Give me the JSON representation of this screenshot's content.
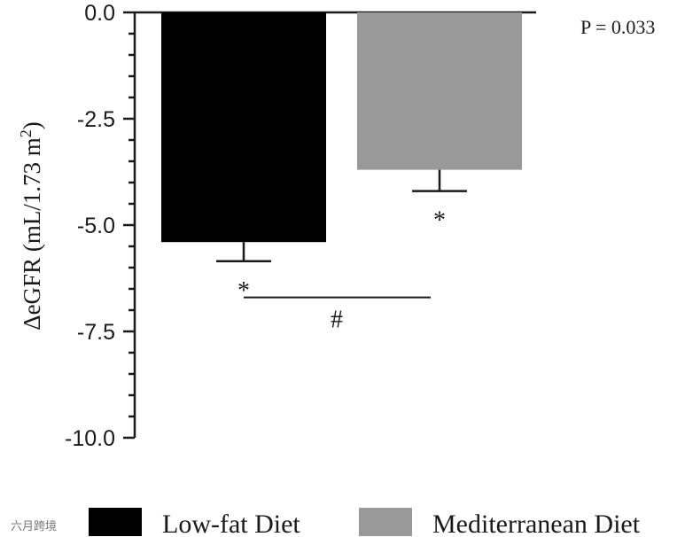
{
  "chart_data": {
    "type": "bar",
    "categories": [
      "Low-fat Diet",
      "Mediterranean Diet"
    ],
    "values": [
      -5.4,
      -3.7
    ],
    "error": [
      0.45,
      0.5
    ],
    "colors": [
      "#000000",
      "#999999"
    ],
    "ylabel_main": "ΔeGFR (mL/1.73 m",
    "ylabel_sup": "2",
    "ylabel_close": ")",
    "ylim": [
      -10.0,
      0.0
    ],
    "yticks": [
      0.0,
      -2.5,
      -5.0,
      -7.5,
      -10.0
    ],
    "ytick_labels": [
      "0.0",
      "-2.5",
      "-5.0",
      "-7.5",
      "-10.0"
    ],
    "within_group_markers": [
      "*",
      "*"
    ],
    "between_group_marker": "#",
    "p_value_text": "P  = 0.033",
    "legend": [
      "Low-fat Diet",
      "Mediterranean Diet"
    ],
    "legend_position": "bottom"
  },
  "watermark": "六月跨境"
}
